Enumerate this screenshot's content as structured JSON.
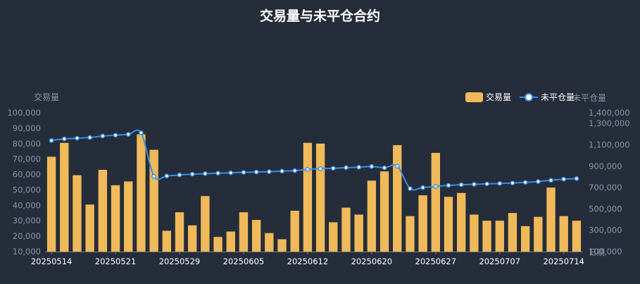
{
  "chart_data": {
    "type": "bar",
    "title": "交易量与未平仓合约",
    "legend": {
      "position": "top-right",
      "items": [
        {
          "name": "交易量",
          "type": "bar",
          "color": "#f0b95a"
        },
        {
          "name": "未平仓量",
          "type": "line",
          "color": "#3a8ee6"
        }
      ]
    },
    "left_axis": {
      "name": "交易量",
      "min": 10000,
      "max": 100000,
      "ticks": [
        "10,000",
        "20,000",
        "30,000",
        "40,000",
        "50,000",
        "60,000",
        "70,000",
        "80,000",
        "90,000",
        "100,000"
      ]
    },
    "right_axis": {
      "name": "未平仓量",
      "min": 100000,
      "max": 1400000,
      "ticks": [
        "100,000",
        "300,000",
        "500,000",
        "700,000",
        "900,000",
        "1,100,000",
        "1,300,000",
        "1,400,000"
      ]
    },
    "x_axis_name": "日期",
    "x_tick_labels": [
      "20250514",
      "20250521",
      "20250529",
      "20250605",
      "20250612",
      "20250620",
      "20250627",
      "20250707",
      "20250714"
    ],
    "series": [
      {
        "name": "交易量",
        "type": "bar",
        "axis": "left",
        "color": "#f0b95a",
        "values": [
          71500,
          80500,
          59500,
          40500,
          63000,
          53000,
          55500,
          86000,
          76000,
          23500,
          35500,
          27000,
          46000,
          19500,
          23000,
          35500,
          30500,
          22000,
          18000,
          36500,
          80500,
          80000,
          29000,
          38500,
          34000,
          56000,
          62000,
          79000,
          33000,
          46500,
          74000,
          45500,
          48000,
          34000,
          30000,
          30000,
          35000,
          26500,
          32500,
          51500,
          33000,
          30000
        ]
      },
      {
        "name": "未平仓量",
        "type": "line",
        "axis": "right",
        "color": "#3a8ee6",
        "values": [
          1140000,
          1155000,
          1162000,
          1168000,
          1182000,
          1190000,
          1198000,
          1212000,
          805000,
          808000,
          818000,
          825000,
          830000,
          834000,
          838000,
          842000,
          845000,
          848000,
          853000,
          858000,
          870000,
          876000,
          880000,
          886000,
          890000,
          897000,
          885000,
          900000,
          690000,
          700000,
          710000,
          720000,
          726000,
          730000,
          734000,
          738000,
          742000,
          748000,
          756000,
          768000,
          778000,
          784000
        ]
      }
    ]
  }
}
